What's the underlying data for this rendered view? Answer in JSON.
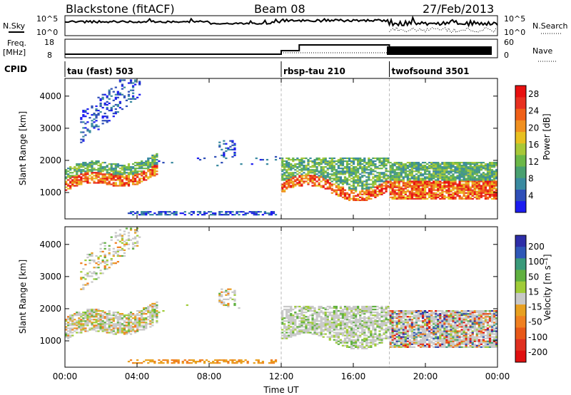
{
  "header": {
    "station": "Blackstone (fitACF)",
    "beam": "Beam 08",
    "date": "27/Feb/2013"
  },
  "nsky_panel": {
    "left_label": "N.Sky",
    "right_label": "N.Search",
    "left_ticks": [
      "10^5",
      "10^0"
    ],
    "right_ticks": [
      "10^5",
      "10^0"
    ]
  },
  "freq_panel": {
    "left_label_top": "Freq.",
    "left_label_bottom": "[MHz]",
    "right_label": "Nave",
    "left_ticks": [
      "18",
      "8"
    ],
    "right_ticks": [
      "60",
      "0"
    ]
  },
  "cpid_panel": {
    "label": "CPID",
    "segments": [
      {
        "name": "tau (fast) 503",
        "start_h": 0,
        "end_h": 12
      },
      {
        "name": "rbsp-tau 210",
        "start_h": 12,
        "end_h": 18
      },
      {
        "name": "twofsound 3501",
        "start_h": 18,
        "end_h": 24
      }
    ]
  },
  "colors": {
    "power_scale": [
      "#1c1cf0",
      "#2f4fb8",
      "#3a8aa0",
      "#49a070",
      "#6cb848",
      "#a8c838",
      "#e8c020",
      "#f09020",
      "#f06018",
      "#e83020",
      "#e81010"
    ],
    "velocity_scale": [
      "#2e2ea8",
      "#2f58b8",
      "#3a9a7a",
      "#60b040",
      "#a0cc38",
      "#c8c8c8",
      "#e8a020",
      "#f08020",
      "#e85818",
      "#e03020",
      "#e01010"
    ]
  },
  "chart_data": [
    {
      "type": "heatmap",
      "name": "power",
      "xlabel": "",
      "ylabel": "Slant Range [km]",
      "x_unit": "hours UT",
      "xlim": [
        0,
        24
      ],
      "ylim": [
        180,
        4550
      ],
      "yticks": [
        "1000",
        "2000",
        "3000",
        "4000"
      ],
      "colorbar_label": "Power [dB]",
      "colorbar_ticks": [
        "4",
        "8",
        "12",
        "16",
        "20",
        "24",
        "28"
      ],
      "colorbar_range": [
        0,
        30
      ],
      "dashed_boundaries_h": [
        12,
        18
      ]
    },
    {
      "type": "heatmap",
      "name": "velocity",
      "xlabel": "Time UT",
      "ylabel": "Slant Range [km]",
      "x_unit": "hours UT",
      "xlim": [
        0,
        24
      ],
      "ylim": [
        180,
        4550
      ],
      "xticks": [
        "00:00",
        "04:00",
        "08:00",
        "12:00",
        "16:00",
        "20:00",
        "00:00"
      ],
      "yticks": [
        "1000",
        "2000",
        "3000",
        "4000"
      ],
      "colorbar_label": "Velocity [m s⁻¹]",
      "colorbar_ticks": [
        "200",
        "100",
        "50",
        "15",
        "-15",
        "-50",
        "-100",
        "-200"
      ],
      "colorbar_range": [
        -250,
        250
      ],
      "dashed_boundaries_h": [
        12,
        18
      ]
    }
  ]
}
